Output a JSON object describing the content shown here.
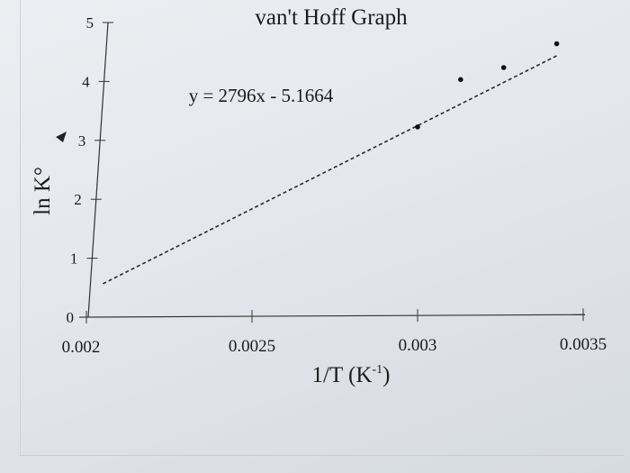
{
  "chart_data": {
    "type": "scatter",
    "title": "van't Hoff Graph",
    "xlabel": "1/T (K",
    "xlabel_superscript": "-1",
    "xlabel_suffix": ")",
    "ylabel": "ln K°",
    "xlim": [
      0.002,
      0.0035
    ],
    "ylim": [
      0,
      5
    ],
    "x_ticks": [
      0.002,
      0.0025,
      0.003,
      0.0035
    ],
    "x_tick_labels": [
      "0.002",
      "0.0025",
      "0.003",
      "0.0035"
    ],
    "y_ticks": [
      0,
      1,
      2,
      3,
      4,
      5
    ],
    "y_tick_labels": [
      "0",
      "1",
      "2",
      "3",
      "4",
      "5"
    ],
    "grid": false,
    "series": [
      {
        "x": [
          0.003,
          0.00313,
          0.00326,
          0.00342
        ],
        "y": [
          3.2,
          4.0,
          4.2,
          4.6
        ]
      }
    ],
    "trendline": {
      "equation_label": "y = 2796x - 5.1664",
      "slope": 2796,
      "intercept": -5.1664,
      "style": "dashed",
      "x_range": [
        0.00205,
        0.00342
      ]
    }
  }
}
